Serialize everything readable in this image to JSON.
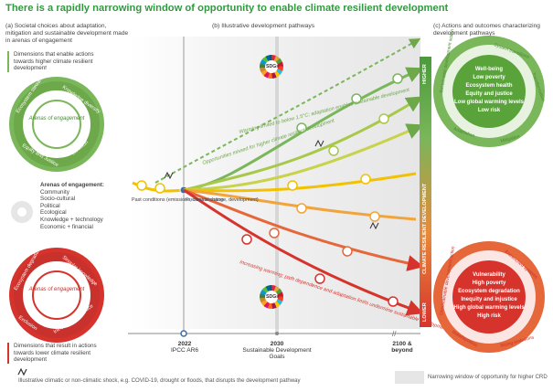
{
  "title": "There is a rapidly narrowing window of opportunity to enable climate resilient development",
  "panel_a": {
    "heading": "(a) Societal choices about adaptation, mitigation and sustainable development made in arenas of engagement",
    "dims_high": "Dimensions that enable actions towards higher climate resilient development",
    "dims_low": "Dimensions that result in actions towards lower climate resilient development",
    "arenas_title": "Arenas of engagement:",
    "arenas_items": [
      "Community",
      "Socio-cultural",
      "Political",
      "Ecological",
      "Knowledge + technology",
      "Economic + financial"
    ],
    "gear_top_center": "Arenas of engagement",
    "gear_top_labels": [
      "Ecosystem stewardship",
      "Knowledge diversity",
      "Equity and Justice",
      "Inclusion"
    ],
    "gear_bot_center": "Arenas of engagement",
    "gear_bot_labels": [
      "Ecosystem degradation",
      "Singular knowledge",
      "Exclusion",
      "Inequity and injustice"
    ]
  },
  "panel_b": {
    "heading": "(b) Illustrative development pathways",
    "missed": "Opportunities missed for higher climate resilient development",
    "warming_low": "Warming limited to below 1.5°C; adaptation enables sustainable development",
    "warming_high": "Increasing warming; path dependence and adaptation limits undermine sustainable development",
    "past": "Past conditions (emissions, climate change, development)",
    "present": "Present situation",
    "sdgs_label": "SDGs",
    "x_2022": "2022",
    "x_2022_sub": "IPCC AR6",
    "x_2030": "2030",
    "x_2030_sub": "Sustainable Development Goals",
    "x_2100": "2100 & beyond"
  },
  "panel_c": {
    "heading": "(c) Actions and outcomes characterizing development pathways",
    "axis": "CLIMATE RESILIENT DEVELOPMENT",
    "higher": "HIGHER",
    "lower": "LOWER",
    "top_ring": [
      "Sustainable development action",
      "System transitions",
      "Transformation",
      "Mitigation",
      "Adaptation"
    ],
    "top_outcomes": [
      "Well-being",
      "Low poverty",
      "Ecosystem health",
      "Equity and justice",
      "Low global warming levels",
      "Low risk"
    ],
    "bot_ring": [
      "Unsustainable development action",
      "Entrenched systems",
      "Rising emissions",
      "Maladaptation"
    ],
    "bot_outcomes": [
      "Vulnerability",
      "High poverty",
      "Ecosystem degradation",
      "Inequity and injustice",
      "High global warming levels",
      "High risk"
    ]
  },
  "footer": {
    "shock": "Illustrative climatic or non-climatic shock, e.g. COVID-19, drought or floods, that disrupts the development pathway",
    "window": "Narrowing window of opportunity for higher CRD"
  }
}
